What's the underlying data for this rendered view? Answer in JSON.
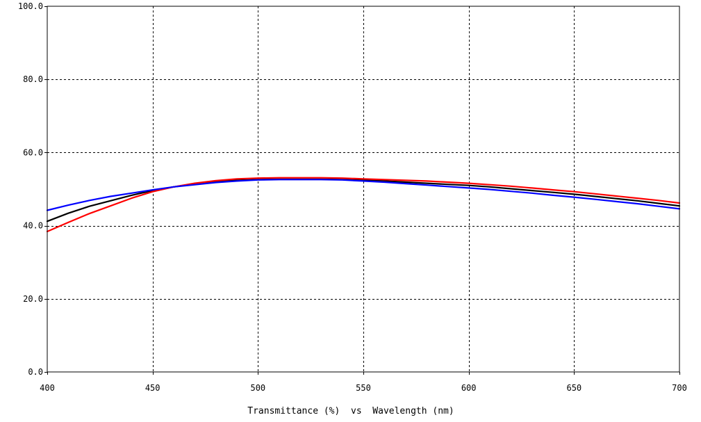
{
  "chart_data": {
    "type": "line",
    "xlabel": "Transmittance (%)  vs  Wavelength (nm)",
    "ylabel": "",
    "xlim": [
      400,
      700
    ],
    "ylim": [
      0,
      100
    ],
    "x_ticks": [
      400,
      450,
      500,
      550,
      600,
      650,
      700
    ],
    "x_tick_labels": [
      "400",
      "450",
      "500",
      "550",
      "600",
      "650",
      "700"
    ],
    "y_ticks": [
      0,
      20,
      40,
      60,
      80,
      100
    ],
    "y_tick_labels": [
      "0.0",
      "20.0",
      "40.0",
      "60.0",
      "80.0",
      "100.0"
    ],
    "grid": true,
    "x": [
      400,
      410,
      420,
      430,
      440,
      450,
      460,
      470,
      480,
      490,
      500,
      510,
      520,
      530,
      540,
      550,
      560,
      570,
      580,
      590,
      600,
      610,
      620,
      630,
      640,
      650,
      660,
      670,
      680,
      690,
      700
    ],
    "series": [
      {
        "color": "#000000",
        "values": [
          41.2,
          43.4,
          45.3,
          46.8,
          48.3,
          49.6,
          50.6,
          51.4,
          52.0,
          52.4,
          52.6,
          52.7,
          52.7,
          52.7,
          52.6,
          52.4,
          52.2,
          51.9,
          51.6,
          51.3,
          51.0,
          50.6,
          50.1,
          49.6,
          49.1,
          48.6,
          48.0,
          47.4,
          46.8,
          46.1,
          45.4
        ]
      },
      {
        "color": "#ff0000",
        "values": [
          38.4,
          40.9,
          43.3,
          45.4,
          47.5,
          49.3,
          50.6,
          51.6,
          52.3,
          52.8,
          53.0,
          53.1,
          53.1,
          53.1,
          53.0,
          52.8,
          52.6,
          52.4,
          52.2,
          51.9,
          51.6,
          51.2,
          50.8,
          50.3,
          49.8,
          49.3,
          48.7,
          48.1,
          47.5,
          46.9,
          46.2
        ]
      },
      {
        "color": "#0000ff",
        "values": [
          44.2,
          45.6,
          46.9,
          48.0,
          48.9,
          49.8,
          50.6,
          51.2,
          51.8,
          52.2,
          52.5,
          52.6,
          52.6,
          52.6,
          52.5,
          52.2,
          51.9,
          51.5,
          51.1,
          50.7,
          50.3,
          49.9,
          49.4,
          48.9,
          48.3,
          47.8,
          47.2,
          46.6,
          46.0,
          45.3,
          44.6
        ]
      }
    ]
  }
}
